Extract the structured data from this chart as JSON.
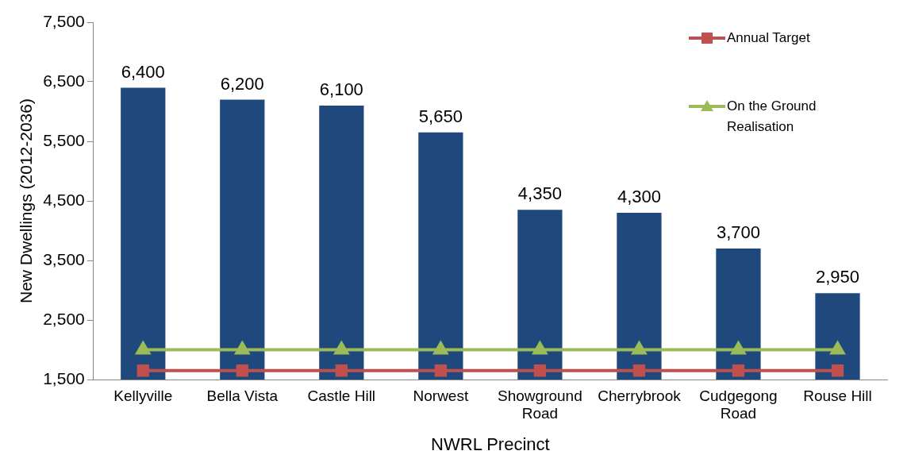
{
  "chart_data": {
    "type": "bar",
    "xlabel": "NWRL Precinct",
    "ylabel": "New Dwellings (2012-2036)",
    "categories": [
      "Kellyville",
      "Bella Vista",
      "Castle Hill",
      "Norwest",
      "Showground Road",
      "Cherrybrook",
      "Cudgegong Road",
      "Rouse Hill"
    ],
    "series": [
      {
        "color": "#1f497d",
        "values": [
          6400,
          6200,
          6100,
          5650,
          4350,
          4300,
          3700,
          2950
        ],
        "value_labels": [
          "6,400",
          "6,200",
          "6,100",
          "5,650",
          "4,350",
          "4,300",
          "3,700",
          "2,950"
        ]
      },
      {
        "type": "line",
        "name": "Annual Target",
        "color": "#c0504d",
        "marker": "square",
        "values": [
          1650,
          1650,
          1650,
          1650,
          1650,
          1650,
          1650,
          1650
        ]
      },
      {
        "type": "line",
        "name": "On the Ground Realisation",
        "color": "#9bbb59",
        "marker": "triangle",
        "values": [
          2000,
          2000,
          2000,
          2000,
          2000,
          2000,
          2000,
          2000
        ]
      }
    ],
    "ylim": [
      1500,
      7500
    ],
    "yticks": [
      {
        "value": 1500,
        "label": "1,500"
      },
      {
        "value": 2500,
        "label": "2,500"
      },
      {
        "value": 3500,
        "label": "3,500"
      },
      {
        "value": 4500,
        "label": "4,500"
      },
      {
        "value": 5500,
        "label": "5,500"
      },
      {
        "value": 6500,
        "label": "6,500"
      },
      {
        "value": 7500,
        "label": "7,500"
      }
    ],
    "grid": false,
    "legend": "top right"
  }
}
